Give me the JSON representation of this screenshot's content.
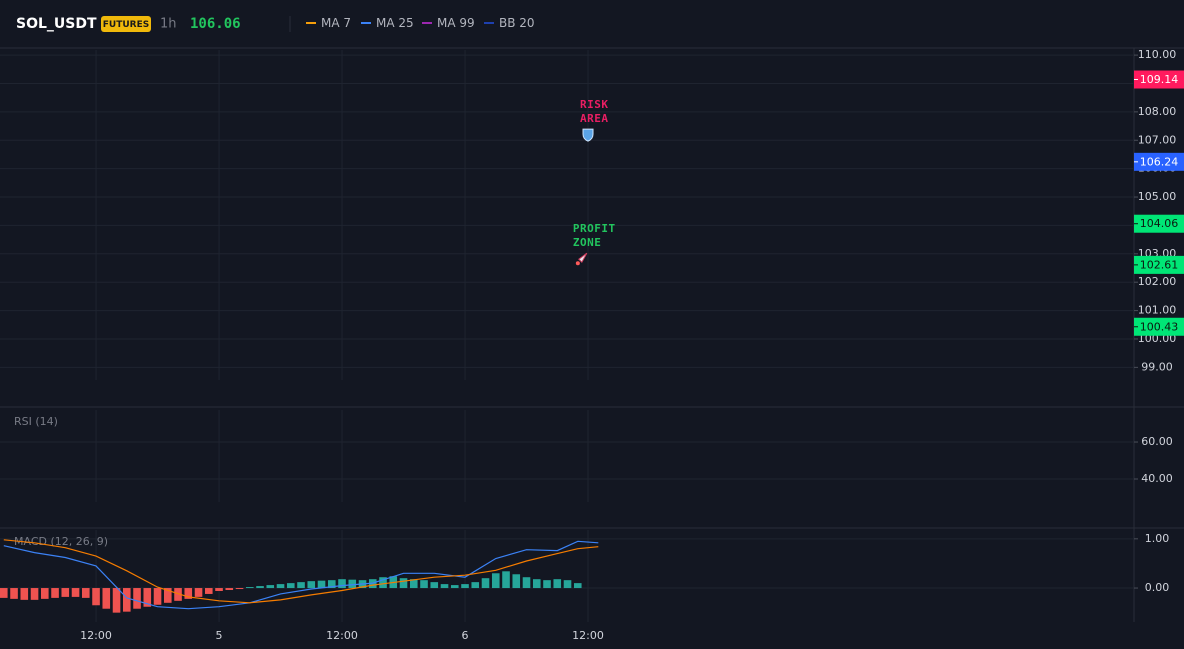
{
  "header": {
    "symbol": "SOL_USDT",
    "badge": "FUTURES",
    "interval": "1h",
    "price": 106.06
  },
  "legend": [
    {
      "name": "MA 7",
      "color": "#f59e0b"
    },
    {
      "name": "MA 25",
      "color": "#3b82f6"
    },
    {
      "name": "MA 99",
      "color": "#9c27b0"
    },
    {
      "name": "BB 20",
      "color": "#1e40af"
    }
  ],
  "chart_data": [
    {
      "type": "price",
      "ylim": [
        97.85,
        110.25
      ],
      "yticks": [
        {
          "value": 99,
          "label": "99.00"
        },
        {
          "value": 100,
          "label": "100.00"
        },
        {
          "value": 101,
          "label": "101.00"
        },
        {
          "value": 102,
          "label": "102.00"
        },
        {
          "value": 103,
          "label": "103.00"
        },
        {
          "value": 104,
          "label": "104.00"
        },
        {
          "value": 105,
          "label": "105.00"
        },
        {
          "value": 106,
          "label": "106.00"
        },
        {
          "value": 107,
          "label": "107.00"
        },
        {
          "value": 108,
          "label": "108.00"
        },
        {
          "value": 109,
          "label": "109.00"
        },
        {
          "value": 110,
          "label": "110.00"
        }
      ],
      "price_labels": [
        {
          "value": 109.14,
          "color": "#ff1a5e"
        },
        {
          "value": 106.24,
          "color": "#2962ff"
        },
        {
          "value": 104.06,
          "color": "#00e676"
        },
        {
          "value": 102.61,
          "color": "#00e676"
        },
        {
          "value": 100.43,
          "color": "#00e676"
        }
      ],
      "annotations": [
        {
          "label_lines": [
            "RISK",
            "AREA"
          ],
          "x": 60,
          "price": 107.18,
          "color": "#e91e63",
          "icon": "shield"
        },
        {
          "label_lines": [
            "PROFIT",
            "ZONE"
          ],
          "x": 59.3,
          "price": 102.81,
          "color": "#22c55e",
          "icon": "rocket"
        }
      ]
    },
    {
      "type": "line",
      "title": "RSI (14)",
      "ylim": [
        13.5,
        78.4
      ],
      "yticks": [
        {
          "value": 40,
          "label": "40.00"
        },
        {
          "value": 60,
          "label": "60.00"
        }
      ]
    },
    {
      "type": "macd",
      "title": "MACD (12, 26, 9)",
      "ylim": [
        -0.69,
        1.22
      ],
      "yticks": [
        {
          "value": 0,
          "label": "0.00"
        },
        {
          "value": 1,
          "label": "1.00"
        }
      ],
      "xlim": [
        2.63,
        113.27
      ],
      "xticks": [
        {
          "value": 12,
          "label": "12:00"
        },
        {
          "value": 24,
          "label": "5"
        },
        {
          "value": 36,
          "label": "12:00"
        },
        {
          "value": 48,
          "label": "6"
        },
        {
          "value": 60,
          "label": "12:00"
        }
      ],
      "x": [
        3,
        6,
        9,
        12,
        15,
        18,
        21,
        24,
        27,
        30,
        33,
        36,
        39,
        42,
        45,
        48,
        51,
        54,
        57,
        59,
        61
      ],
      "series": [
        {
          "color": "#3b82f6",
          "values": [
            0.86,
            0.72,
            0.62,
            0.45,
            -0.2,
            -0.38,
            -0.42,
            -0.38,
            -0.3,
            -0.12,
            -0.02,
            0.05,
            0.1,
            0.3,
            0.3,
            0.22,
            0.6,
            0.78,
            0.76,
            0.95,
            0.92
          ]
        },
        {
          "color": "#f57c00",
          "values": [
            0.98,
            0.92,
            0.82,
            0.65,
            0.35,
            0.02,
            -0.18,
            -0.26,
            -0.3,
            -0.24,
            -0.14,
            -0.05,
            0.06,
            0.14,
            0.22,
            0.26,
            0.36,
            0.55,
            0.7,
            0.8,
            0.84
          ]
        }
      ],
      "histogram": {
        "up_color": "#26a69a",
        "down_color": "#ef5350",
        "x": [
          3,
          4,
          5,
          6,
          7,
          8,
          9,
          10,
          11,
          12,
          13,
          14,
          15,
          16,
          17,
          18,
          19,
          20,
          21,
          22,
          23,
          24,
          25,
          26,
          27,
          28,
          29,
          30,
          31,
          32,
          33,
          34,
          35,
          36,
          37,
          38,
          39,
          40,
          41,
          42,
          43,
          44,
          45,
          46,
          47,
          48,
          49,
          50,
          51,
          52,
          53,
          54,
          55,
          56,
          57,
          58,
          59
        ],
        "values": [
          -0.2,
          -0.22,
          -0.24,
          -0.24,
          -0.22,
          -0.2,
          -0.18,
          -0.18,
          -0.2,
          -0.35,
          -0.42,
          -0.5,
          -0.48,
          -0.42,
          -0.38,
          -0.34,
          -0.3,
          -0.26,
          -0.22,
          -0.18,
          -0.12,
          -0.06,
          -0.04,
          -0.02,
          0.02,
          0.04,
          0.06,
          0.08,
          0.1,
          0.12,
          0.14,
          0.15,
          0.16,
          0.18,
          0.17,
          0.16,
          0.18,
          0.22,
          0.24,
          0.2,
          0.18,
          0.16,
          0.12,
          0.08,
          0.06,
          0.08,
          0.12,
          0.2,
          0.3,
          0.34,
          0.28,
          0.22,
          0.18,
          0.16,
          0.18,
          0.16,
          0.1
        ]
      }
    }
  ]
}
